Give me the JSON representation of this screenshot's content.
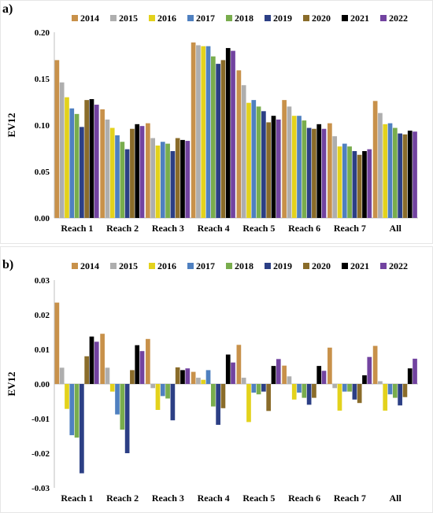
{
  "colors": {
    "2014": "#c8914a",
    "2015": "#aeaeae",
    "2016": "#e3d21c",
    "2017": "#4f80c0",
    "2018": "#79ad4d",
    "2019": "#2c3f85",
    "2020": "#8a6c2a",
    "2021": "#000000",
    "2022": "#7243a0"
  },
  "chart_data": [
    {
      "panel_label": "a)",
      "type": "bar",
      "ylabel": "EV12",
      "ylim": [
        0,
        0.2
      ],
      "yticks": [
        "0.00",
        "0.05",
        "0.10",
        "0.15",
        "0.20"
      ],
      "categories": [
        "Reach 1",
        "Reach 2",
        "Reach 3",
        "Reach 4",
        "Reach 5",
        "Reach 6",
        "Reach 7",
        "All"
      ],
      "legend_position": "top",
      "series": [
        {
          "name": "2014",
          "values": [
            0.17,
            0.117,
            0.102,
            0.189,
            0.159,
            0.127,
            0.102,
            0.126
          ]
        },
        {
          "name": "2015",
          "values": [
            0.146,
            0.106,
            0.086,
            0.186,
            0.143,
            0.12,
            0.088,
            0.113
          ]
        },
        {
          "name": "2016",
          "values": [
            0.13,
            0.097,
            0.078,
            0.185,
            0.124,
            0.11,
            0.077,
            0.101
          ]
        },
        {
          "name": "2017",
          "values": [
            0.118,
            0.089,
            0.082,
            0.185,
            0.127,
            0.11,
            0.08,
            0.102
          ]
        },
        {
          "name": "2018",
          "values": [
            0.112,
            0.082,
            0.08,
            0.174,
            0.12,
            0.105,
            0.077,
            0.097
          ]
        },
        {
          "name": "2019",
          "values": [
            0.098,
            0.074,
            0.072,
            0.166,
            0.115,
            0.097,
            0.072,
            0.091
          ]
        },
        {
          "name": "2020",
          "values": [
            0.127,
            0.096,
            0.086,
            0.17,
            0.103,
            0.096,
            0.068,
            0.09
          ]
        },
        {
          "name": "2021",
          "values": [
            0.128,
            0.101,
            0.084,
            0.183,
            0.11,
            0.101,
            0.072,
            0.094
          ]
        },
        {
          "name": "2022",
          "values": [
            0.122,
            0.099,
            0.083,
            0.18,
            0.106,
            0.096,
            0.074,
            0.093
          ]
        }
      ]
    },
    {
      "panel_label": "b)",
      "type": "bar",
      "ylabel": "EV12",
      "ylim": [
        -0.03,
        0.03
      ],
      "yticks": [
        "-0.03",
        "-0.02",
        "-0.01",
        "0.00",
        "0.01",
        "0.02",
        "0.03"
      ],
      "categories": [
        "Reach 1",
        "Reach 2",
        "Reach 3",
        "Reach 4",
        "Reach 5",
        "Reach 6",
        "Reach 7",
        "All"
      ],
      "legend_position": "top",
      "series": [
        {
          "name": "2014",
          "values": [
            0.0235,
            0.0145,
            0.013,
            0.0035,
            0.0113,
            0.0053,
            0.0105,
            0.011
          ]
        },
        {
          "name": "2015",
          "values": [
            0.0047,
            0.0047,
            -0.0012,
            0.0018,
            0.0018,
            0.0022,
            -0.0012,
            0.0008
          ]
        },
        {
          "name": "2016",
          "values": [
            -0.0072,
            -0.0022,
            -0.0075,
            0.0012,
            -0.011,
            -0.0045,
            -0.0077,
            -0.0077
          ]
        },
        {
          "name": "2017",
          "values": [
            -0.0148,
            -0.0088,
            -0.0035,
            0.004,
            -0.0025,
            -0.0025,
            -0.0022,
            -0.003
          ]
        },
        {
          "name": "2018",
          "values": [
            -0.0155,
            -0.0132,
            -0.0042,
            -0.0065,
            -0.003,
            -0.004,
            -0.0022,
            -0.004
          ]
        },
        {
          "name": "2019",
          "values": [
            -0.0258,
            -0.02,
            -0.0105,
            -0.0118,
            -0.0022,
            -0.006,
            -0.0045,
            -0.0062
          ]
        },
        {
          "name": "2020",
          "values": [
            0.008,
            0.004,
            0.0048,
            -0.007,
            -0.0078,
            -0.004,
            -0.0055,
            -0.0038
          ]
        },
        {
          "name": "2021",
          "values": [
            0.0137,
            0.0112,
            0.004,
            0.0085,
            0.0052,
            0.0052,
            0.0025,
            0.0045
          ]
        },
        {
          "name": "2022",
          "values": [
            0.0122,
            0.0095,
            0.0045,
            0.0062,
            0.0072,
            0.0038,
            0.0078,
            0.0073
          ]
        }
      ]
    }
  ]
}
